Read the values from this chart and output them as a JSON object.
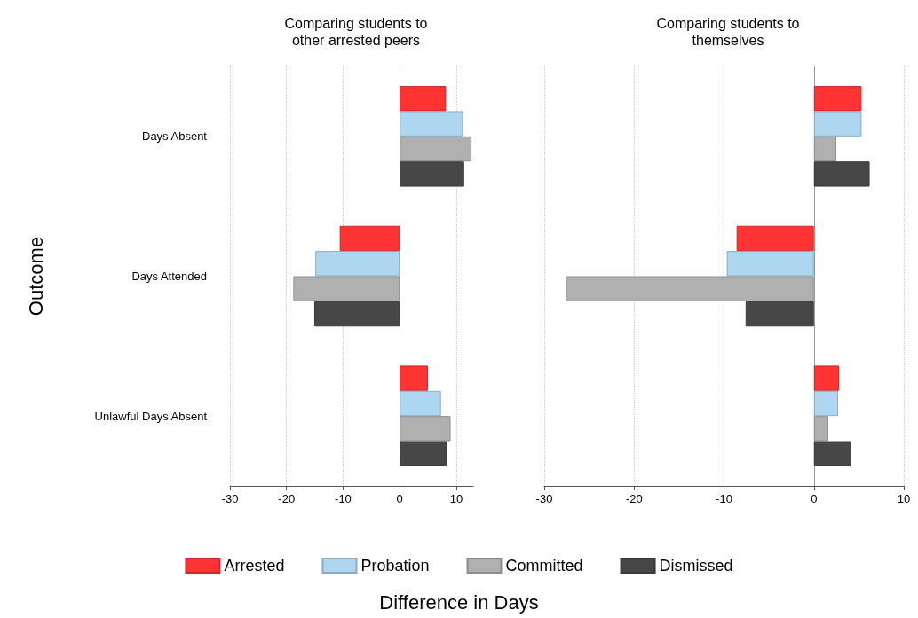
{
  "chart_data": [
    {
      "type": "bar",
      "orientation": "horizontal",
      "title": "Comparing students to\nother arrested peers",
      "ylabel": "Outcome",
      "xlabel": "Difference in Days",
      "categories": [
        "Days Absent",
        "Days Attended",
        "Unlawful Days Absent"
      ],
      "series": [
        {
          "name": "Arrested",
          "color": "#ff3333",
          "values": [
            8.2,
            -10.6,
            5.0
          ]
        },
        {
          "name": "Probation",
          "color": "#aed6f1",
          "values": [
            11.2,
            -14.9,
            7.3
          ]
        },
        {
          "name": "Committed",
          "color": "#b0b0b0",
          "values": [
            12.7,
            -18.8,
            9.0
          ]
        },
        {
          "name": "Dismissed",
          "color": "#474747",
          "values": [
            11.4,
            -15.1,
            8.3
          ]
        }
      ],
      "xlim": [
        -30,
        13
      ],
      "xticks": [
        -30,
        -20,
        -10,
        0,
        10
      ],
      "grid": "x",
      "legend": "bottom"
    },
    {
      "type": "bar",
      "orientation": "horizontal",
      "title": "Comparing students to\nthemselves",
      "categories": [
        null,
        null,
        null
      ],
      "series": [
        {
          "color": "#ff3333",
          "values": [
            5.3,
            -8.6,
            2.8
          ]
        },
        {
          "color": "#aed6f1",
          "values": [
            5.3,
            -9.7,
            2.7
          ]
        },
        {
          "color": "#b0b0b0",
          "values": [
            2.5,
            -27.6,
            1.6
          ]
        },
        {
          "color": "#474747",
          "values": [
            6.2,
            -7.6,
            4.1
          ]
        }
      ],
      "xlim": [
        -30,
        10
      ],
      "xticks": [
        -30,
        -20,
        -10,
        0,
        10
      ],
      "grid": "x",
      "tick_labels": "x"
    }
  ]
}
